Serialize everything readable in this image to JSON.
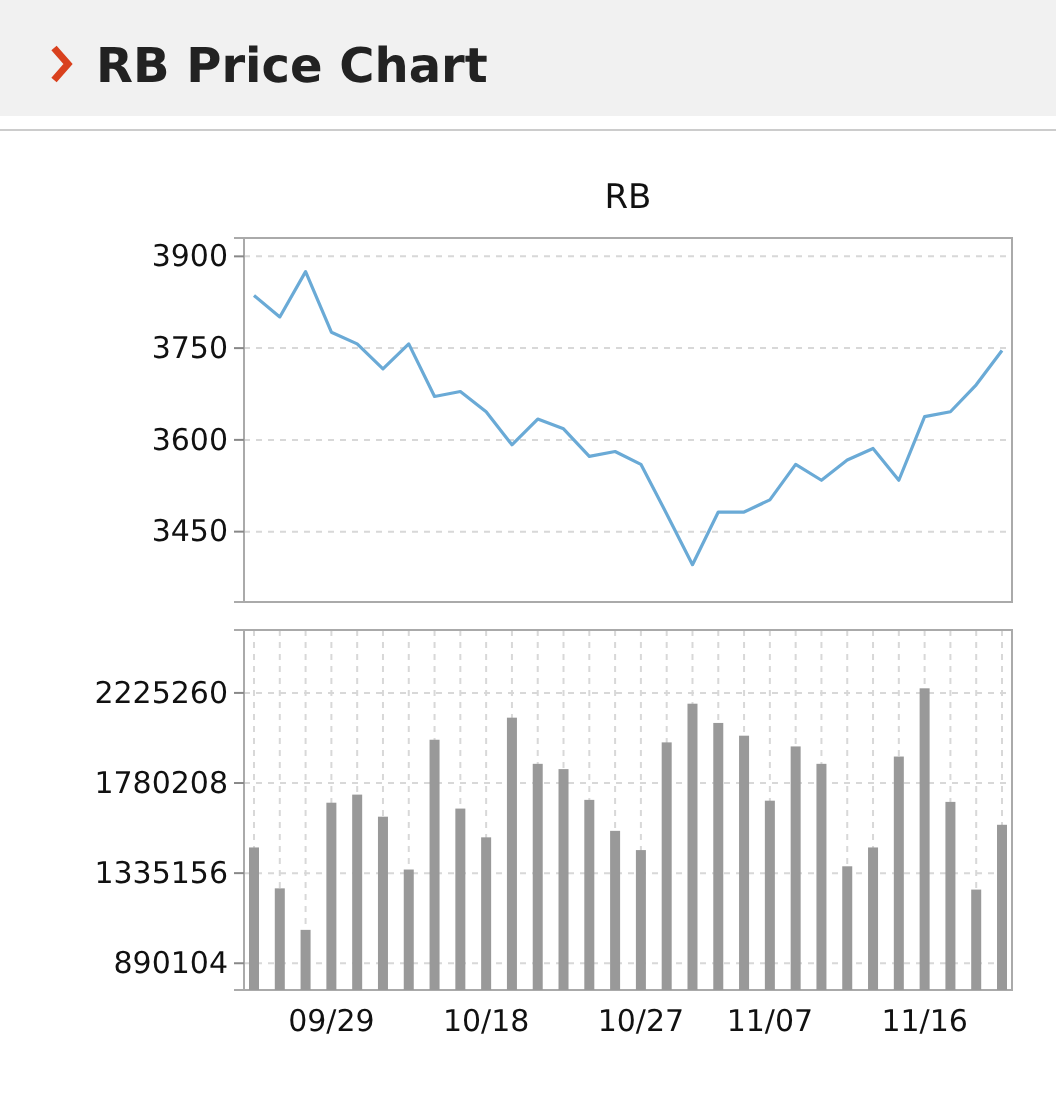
{
  "chart_data": [
    {
      "type": "line",
      "title": "RB Price Chart",
      "subtitle": "RB",
      "categories": [
        null,
        null,
        null,
        null,
        null,
        null,
        null,
        null,
        null,
        null,
        null,
        null,
        null,
        null,
        null,
        null,
        null,
        null,
        null,
        null,
        null,
        null,
        null,
        null,
        null,
        null,
        null,
        null,
        null,
        null
      ],
      "series": [
        {
          "color": "#6aaad6",
          "values": [
            3836,
            3801,
            3875,
            3776,
            3757,
            3716,
            3757,
            3671,
            3679,
            3646,
            3592,
            3634,
            3618,
            3573,
            3581,
            3560,
            3479,
            3396,
            3482,
            3482,
            3502,
            3560,
            3534,
            3567,
            3586,
            3534,
            3638,
            3646,
            3690,
            3746
          ]
        }
      ],
      "ylim": [
        3335,
        3930
      ],
      "yticks": [
        3450,
        3600,
        3750,
        3900
      ],
      "grid": "y",
      "tick_labels": "y",
      "marker": "none"
    },
    {
      "type": "bar",
      "categories": [
        null,
        null,
        null,
        "09/29",
        null,
        null,
        null,
        null,
        null,
        "10/18",
        null,
        null,
        null,
        null,
        null,
        "10/27",
        null,
        null,
        null,
        null,
        "11/07",
        null,
        null,
        null,
        null,
        null,
        "11/16",
        null,
        null,
        null
      ],
      "series": [
        {
          "color": "#999999",
          "values": [
            1462000,
            1260000,
            1055000,
            1683000,
            1723000,
            1614000,
            1353000,
            1994000,
            1654000,
            1512000,
            2103000,
            1875000,
            1849000,
            1697000,
            1544000,
            1449000,
            1981000,
            2172000,
            2077000,
            2014000,
            1693000,
            1961000,
            1875000,
            1369000,
            1462000,
            1911000,
            2248000,
            1687000,
            1254000,
            1574000
          ]
        }
      ],
      "ylim": [
        758000,
        2536000
      ],
      "yticks": [
        890104,
        1335156,
        1780208,
        2225260
      ],
      "grid": true
    }
  ]
}
